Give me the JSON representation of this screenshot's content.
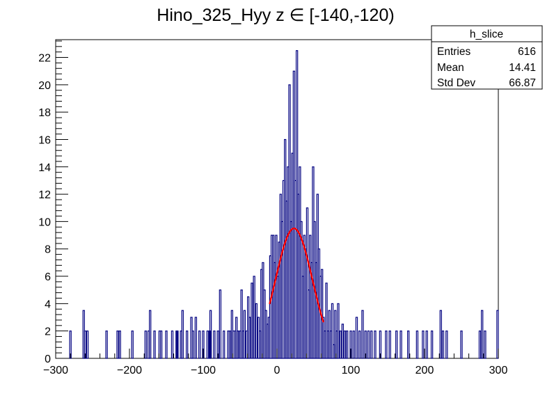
{
  "chart_data": {
    "type": "histogram",
    "title": "Hino_325_Hyy z  ∈ [-140,-120)",
    "xlabel": "",
    "ylabel": "",
    "xlim": [
      -300,
      300
    ],
    "ylim": [
      0,
      23.3
    ],
    "x_ticks": [
      -300,
      -200,
      -100,
      0,
      100,
      200,
      300
    ],
    "y_ticks": [
      0,
      2,
      4,
      6,
      8,
      10,
      12,
      14,
      16,
      18,
      20,
      22
    ],
    "grid": false,
    "histogram_color": "#000080",
    "fit_color": "#ff0000",
    "stats_box": {
      "name": "h_slice",
      "rows": [
        {
          "label": "Entries",
          "value": "616"
        },
        {
          "label": "Mean",
          "value": "14.41"
        },
        {
          "label": "Std Dev",
          "value": "66.87"
        }
      ]
    },
    "bins": [
      [
        -280,
        2
      ],
      [
        -262,
        3.5
      ],
      [
        -260,
        2
      ],
      [
        -257,
        2
      ],
      [
        -231,
        2
      ],
      [
        -216,
        2
      ],
      [
        -213,
        2
      ],
      [
        -196,
        2
      ],
      [
        -178,
        2
      ],
      [
        -174,
        2
      ],
      [
        -172,
        3.5
      ],
      [
        -166,
        2
      ],
      [
        -159,
        2
      ],
      [
        -157,
        2
      ],
      [
        -150,
        2
      ],
      [
        -142,
        2
      ],
      [
        -136,
        2
      ],
      [
        -135,
        2
      ],
      [
        -130,
        2
      ],
      [
        -128,
        3.5
      ],
      [
        -122,
        2
      ],
      [
        -116,
        3
      ],
      [
        -114,
        2
      ],
      [
        -110,
        3
      ],
      [
        -105,
        2
      ],
      [
        -100,
        2
      ],
      [
        -94,
        2
      ],
      [
        -91,
        2
      ],
      [
        -90,
        3.5
      ],
      [
        -85,
        2
      ],
      [
        -80,
        2
      ],
      [
        -77,
        5
      ],
      [
        -72,
        2
      ],
      [
        -66,
        2
      ],
      [
        -64,
        2
      ],
      [
        -61,
        3.5
      ],
      [
        -59,
        2
      ],
      [
        -57,
        2
      ],
      [
        -55,
        3
      ],
      [
        -53,
        2
      ],
      [
        -50,
        2
      ],
      [
        -48,
        5
      ],
      [
        -46,
        2
      ],
      [
        -44,
        3.5
      ],
      [
        -41,
        2
      ],
      [
        -39,
        4.5
      ],
      [
        -37,
        3
      ],
      [
        -34,
        5.5
      ],
      [
        -31,
        6
      ],
      [
        -28,
        4
      ],
      [
        -25,
        3
      ],
      [
        -23,
        2
      ],
      [
        -21,
        6.5
      ],
      [
        -19,
        7
      ],
      [
        -17,
        5
      ],
      [
        -15,
        3.5
      ],
      [
        -13,
        2.5
      ],
      [
        -11,
        3
      ],
      [
        -9,
        7.5
      ],
      [
        -7,
        9
      ],
      [
        -5,
        9
      ],
      [
        -3,
        7
      ],
      [
        -1,
        9
      ],
      [
        1,
        6
      ],
      [
        3,
        8.5
      ],
      [
        5,
        12
      ],
      [
        7,
        10
      ],
      [
        9,
        13
      ],
      [
        11,
        16
      ],
      [
        13,
        11.5
      ],
      [
        15,
        14
      ],
      [
        17,
        20
      ],
      [
        19,
        10
      ],
      [
        21,
        15
      ],
      [
        23,
        21
      ],
      [
        25,
        13
      ],
      [
        27,
        22.5
      ],
      [
        29,
        12
      ],
      [
        31,
        14
      ],
      [
        33,
        10
      ],
      [
        35,
        6
      ],
      [
        37,
        9
      ],
      [
        39,
        8
      ],
      [
        41,
        11
      ],
      [
        43,
        5
      ],
      [
        45,
        9
      ],
      [
        47,
        7
      ],
      [
        49,
        14
      ],
      [
        51,
        10
      ],
      [
        53,
        7
      ],
      [
        55,
        12
      ],
      [
        57,
        8
      ],
      [
        59,
        6
      ],
      [
        61,
        6.5
      ],
      [
        63,
        3
      ],
      [
        65,
        2
      ],
      [
        67,
        5.5
      ],
      [
        69,
        2
      ],
      [
        71,
        3.5
      ],
      [
        73,
        2
      ],
      [
        75,
        4
      ],
      [
        77,
        1
      ],
      [
        79,
        3.5
      ],
      [
        81,
        2
      ],
      [
        83,
        4
      ],
      [
        86,
        2
      ],
      [
        89,
        2.5
      ],
      [
        92,
        2
      ],
      [
        95,
        2
      ],
      [
        100,
        2
      ],
      [
        104,
        2
      ],
      [
        108,
        3
      ],
      [
        112,
        2
      ],
      [
        116,
        3.5
      ],
      [
        120,
        2
      ],
      [
        124,
        2
      ],
      [
        128,
        2
      ],
      [
        133,
        2
      ],
      [
        140,
        2
      ],
      [
        148,
        2
      ],
      [
        153,
        2
      ],
      [
        162,
        2
      ],
      [
        168,
        2
      ],
      [
        178,
        2
      ],
      [
        190,
        2
      ],
      [
        198,
        2
      ],
      [
        203,
        2
      ],
      [
        210,
        2
      ],
      [
        222,
        3.5
      ],
      [
        225,
        2
      ],
      [
        230,
        2
      ],
      [
        250,
        2
      ],
      [
        275,
        2
      ],
      [
        278,
        3.5
      ],
      [
        282,
        2
      ],
      [
        299,
        3.5
      ]
    ],
    "fit": {
      "type": "gaussian",
      "amplitude": 9.5,
      "mean": 23,
      "sigma": 25,
      "x_range": [
        -10,
        63
      ]
    }
  }
}
